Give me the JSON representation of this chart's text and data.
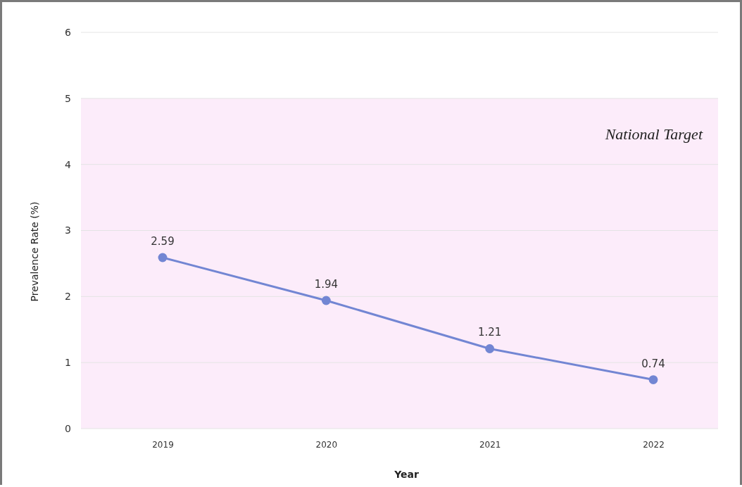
{
  "chart_data": {
    "type": "line",
    "xlabel": "Year",
    "ylabel": "Prevalence Rate (%)",
    "categories": [
      "2019",
      "2020",
      "2021",
      "2022"
    ],
    "series": [
      {
        "color": "#7286d3",
        "values": [
          2.59,
          1.94,
          1.21,
          0.74
        ]
      }
    ],
    "ylim": [
      0,
      6
    ],
    "yticks": [
      0,
      1,
      2,
      3,
      4,
      5,
      6
    ],
    "grid": "y",
    "marker": "circle",
    "data_labels": true,
    "bands": [
      {
        "axis": "y",
        "from": 0,
        "to": 5,
        "label": "National Target",
        "color": "#fcecfa"
      }
    ]
  }
}
